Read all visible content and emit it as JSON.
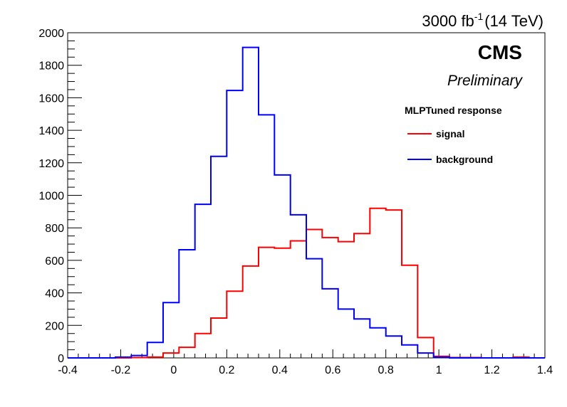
{
  "chart_data": {
    "type": "line",
    "header": {
      "lumi_text": "3000 fb",
      "lumi_exp": "-1",
      "energy_text": "(14 TeV)"
    },
    "cms_label": "CMS",
    "cms_sublabel": "Preliminary",
    "legend": {
      "title": "MLPTuned response",
      "placement": "top-right"
    },
    "x_ticks": [
      "-0.4",
      "-0.2",
      "0",
      "0.2",
      "0.4",
      "0.6",
      "0.8",
      "1",
      "1.2",
      "1.4"
    ],
    "y_ticks": [
      "0",
      "200",
      "400",
      "600",
      "800",
      "1000",
      "1200",
      "1400",
      "1600",
      "1800",
      "2000"
    ],
    "xlim": [
      -0.4,
      1.4
    ],
    "ylim": [
      0,
      2000
    ],
    "bin_edges": [
      -0.4,
      -0.34,
      -0.28,
      -0.22,
      -0.16,
      -0.1,
      -0.04,
      0.02,
      0.08,
      0.14,
      0.2,
      0.26,
      0.32,
      0.38,
      0.44,
      0.5,
      0.56,
      0.62,
      0.68,
      0.74,
      0.8,
      0.86,
      0.92,
      0.98,
      1.04,
      1.1,
      1.16,
      1.22,
      1.28,
      1.34,
      1.4
    ],
    "series": [
      {
        "name": "signal",
        "color": "#ff0000",
        "values": [
          0,
          0,
          0,
          0,
          2,
          5,
          30,
          65,
          150,
          245,
          410,
          565,
          680,
          675,
          720,
          790,
          740,
          715,
          765,
          920,
          910,
          570,
          125,
          10,
          2,
          2,
          0,
          0,
          5,
          0
        ]
      },
      {
        "name": "background",
        "color": "#0000ff",
        "values": [
          0,
          0,
          0,
          5,
          15,
          95,
          340,
          665,
          945,
          1240,
          1645,
          1910,
          1495,
          1125,
          880,
          610,
          425,
          300,
          240,
          185,
          135,
          80,
          30,
          5,
          0,
          0,
          0,
          0,
          0,
          0
        ]
      }
    ]
  }
}
